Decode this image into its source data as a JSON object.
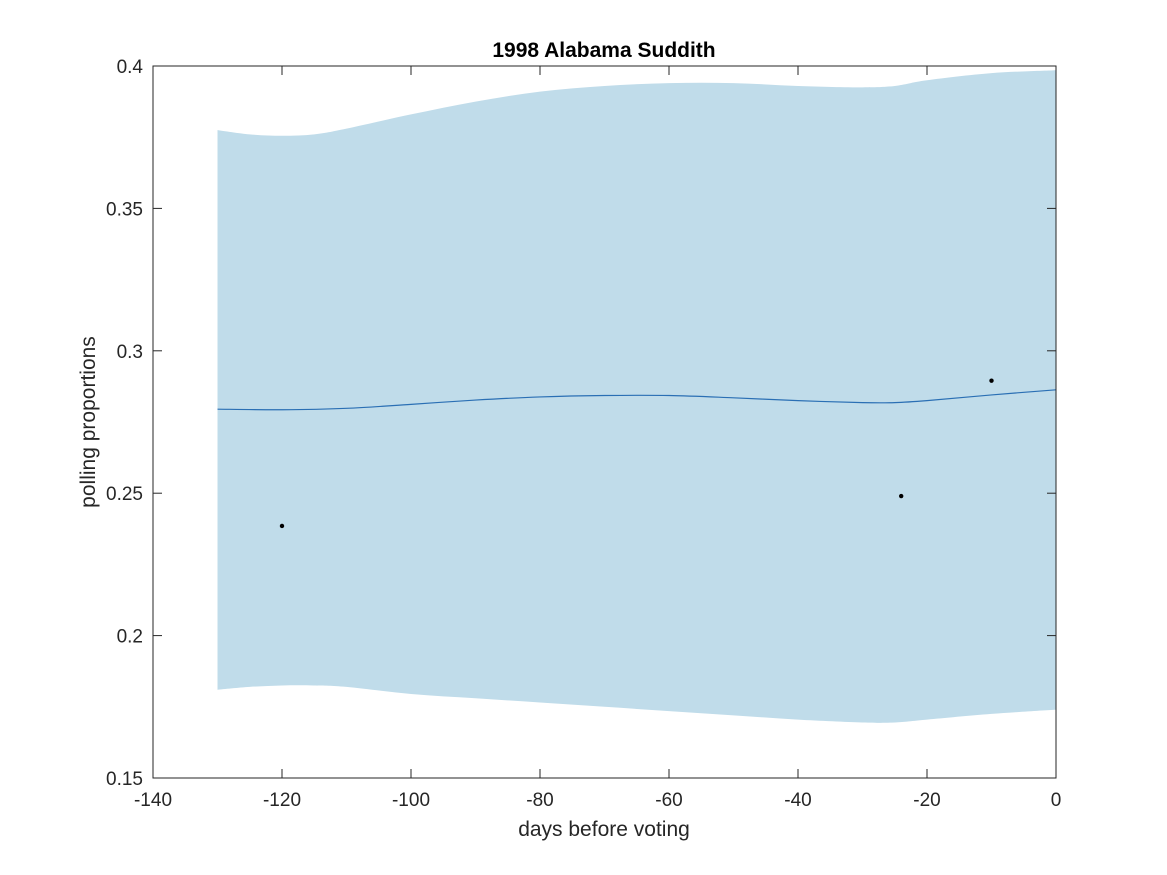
{
  "chart_data": {
    "type": "line",
    "title": "1998 Alabama Suddith",
    "xlabel": "days before voting",
    "ylabel": "polling proportions",
    "xlim": [
      -140,
      0
    ],
    "ylim": [
      0.15,
      0.4
    ],
    "xticks": [
      -140,
      -120,
      -100,
      -80,
      -60,
      -40,
      -20,
      0
    ],
    "yticks": [
      0.15,
      0.2,
      0.25,
      0.3,
      0.35,
      0.4
    ],
    "xtick_labels": [
      "-140",
      "-120",
      "-100",
      "-80",
      "-60",
      "-40",
      "-20",
      "0"
    ],
    "ytick_labels": [
      "0.15",
      "0.2",
      "0.25",
      "0.3",
      "0.35",
      "0.4"
    ],
    "grid": false,
    "colors": {
      "band": "#c0dcea",
      "line": "#2a6fb4",
      "points": "#000000",
      "axes": "#262626"
    },
    "band": {
      "x": [
        -130,
        -125,
        -120,
        -115,
        -110,
        -100,
        -90,
        -80,
        -70,
        -60,
        -50,
        -40,
        -30,
        -25,
        -20,
        -10,
        0
      ],
      "upper": [
        0.3775,
        0.376,
        0.3755,
        0.376,
        0.378,
        0.383,
        0.3875,
        0.391,
        0.393,
        0.394,
        0.394,
        0.393,
        0.3925,
        0.393,
        0.395,
        0.3975,
        0.3985
      ],
      "lower": [
        0.181,
        0.182,
        0.1825,
        0.1825,
        0.182,
        0.1795,
        0.178,
        0.1765,
        0.175,
        0.1735,
        0.172,
        0.1705,
        0.1695,
        0.1695,
        0.1705,
        0.1725,
        0.174
      ]
    },
    "line": {
      "x": [
        -130,
        -120,
        -110,
        -100,
        -90,
        -80,
        -70,
        -60,
        -50,
        -40,
        -30,
        -25,
        -20,
        -10,
        0
      ],
      "y": [
        0.2795,
        0.2793,
        0.2798,
        0.2812,
        0.2827,
        0.2838,
        0.2843,
        0.2843,
        0.2835,
        0.2825,
        0.2818,
        0.2818,
        0.2825,
        0.2845,
        0.2863
      ]
    },
    "points": {
      "x": [
        -120,
        -24,
        -10
      ],
      "y": [
        0.2385,
        0.249,
        0.2895
      ]
    }
  }
}
